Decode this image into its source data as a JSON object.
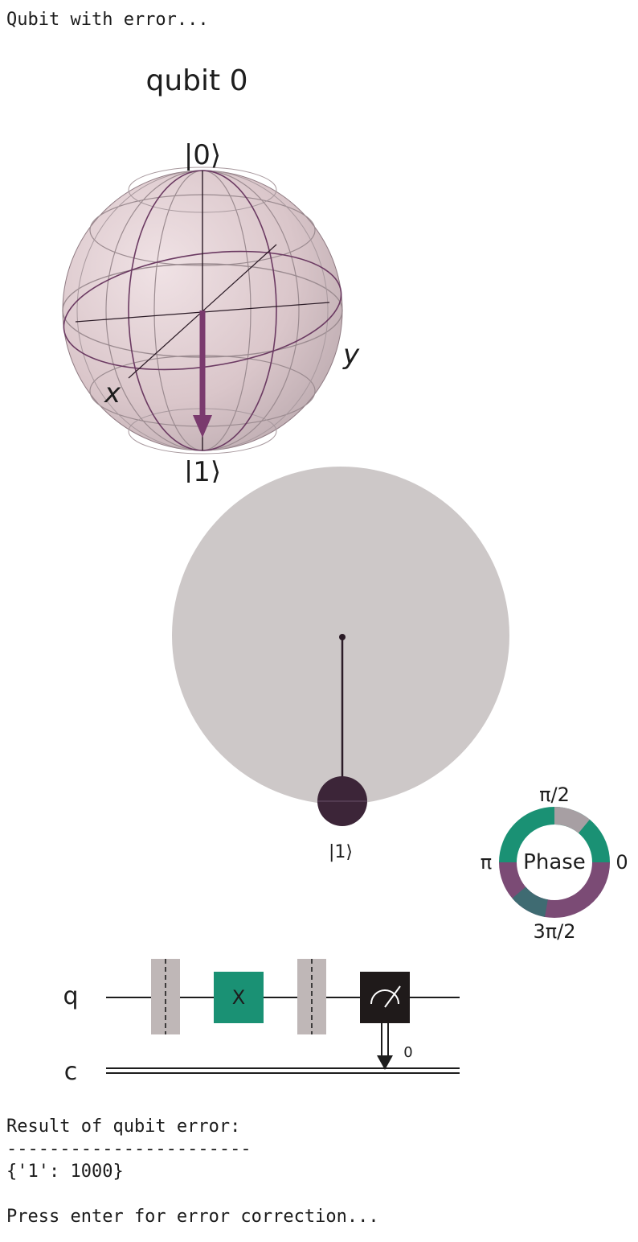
{
  "console": {
    "heading": "Qubit with error...",
    "result_label": "Result of qubit error:",
    "separator": "-----------------------",
    "counts": "{'1': 1000}",
    "prompt": "Press enter for error correction..."
  },
  "bloch": {
    "title": "qubit 0",
    "label_zero": "|0⟩",
    "label_one": "|1⟩",
    "label_x": "x",
    "label_y": "y"
  },
  "qsphere": {
    "state_label": "|1⟩",
    "phase_title": "Phase",
    "phase_top": "π/2",
    "phase_left": "π",
    "phase_right": "0",
    "phase_bottom": "3π/2"
  },
  "circuit": {
    "qreg_label": "q",
    "creg_label": "c",
    "gate_label": "X",
    "measure_bit": "0"
  },
  "colors": {
    "bloch_sphere": "#e4d0d4",
    "bloch_wire": "#6b3a62",
    "state_vector": "#7a3a6e",
    "qsphere_disc": "#cdc8c8",
    "state_node": "#3c2538",
    "phase_green": "#1a9174",
    "phase_purple": "#7b4b75",
    "phase_grey": "#a79fa3",
    "x_gate": "#1a9174",
    "barrier": "#bfb7b7",
    "measure_box": "#1f1a1a"
  }
}
